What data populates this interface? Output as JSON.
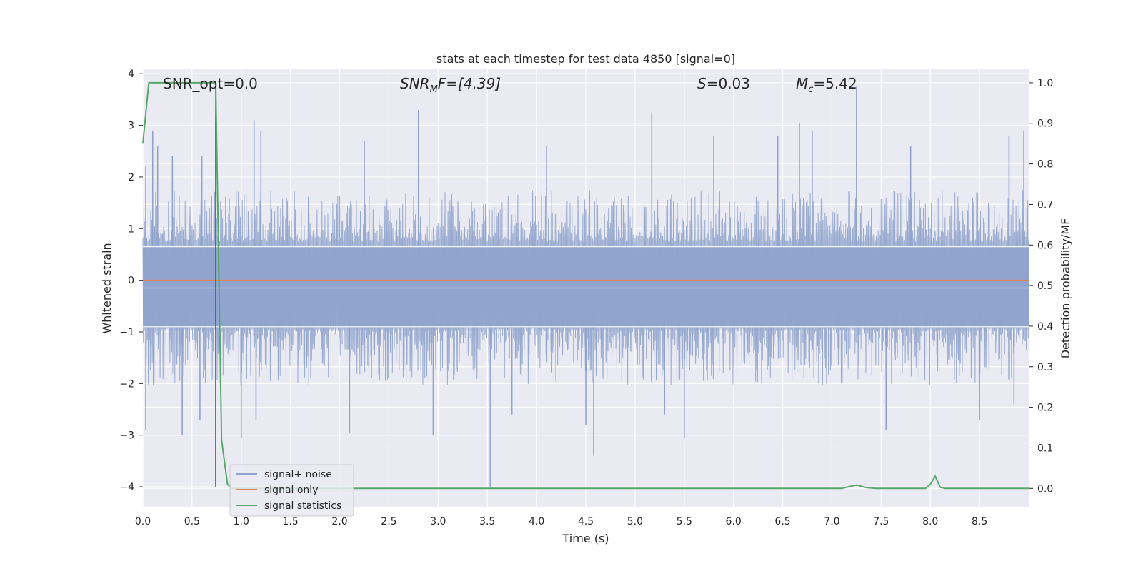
{
  "chart_data": {
    "type": "line",
    "title": "stats at each timestep for test data 4850 [signal=0]",
    "xlabel": "Time (s)",
    "ylabel": "Whitened strain",
    "y2label": "Detection probability/MF",
    "xlim": [
      0.0,
      9.0
    ],
    "ylim": [
      -4.4,
      4.1
    ],
    "y2lim": [
      -0.047,
      1.035
    ],
    "xticks": [
      "0.0",
      "0.5",
      "1.0",
      "1.5",
      "2.0",
      "2.5",
      "3.0",
      "3.5",
      "4.0",
      "4.5",
      "5.0",
      "5.5",
      "6.0",
      "6.5",
      "7.0",
      "7.5",
      "8.0",
      "8.5"
    ],
    "yticks": [
      "4",
      "3",
      "2",
      "1",
      "0",
      "−1",
      "−2",
      "−3",
      "−4"
    ],
    "y2ticks": [
      "1.0",
      "0.9",
      "0.8",
      "0.7",
      "0.6",
      "0.5",
      "0.4",
      "0.3",
      "0.2",
      "0.1",
      "0.0"
    ],
    "grid": true,
    "legend_position": "lower-left",
    "annotations": {
      "snr_opt": "SNR_opt=0.0",
      "snr_mf_sym": "SNR",
      "snr_mf_sub": "M",
      "snr_mf_rest": "F=[4.39]",
      "s_sym": "S",
      "s_rest": "=0.03",
      "mc_sym": "M",
      "mc_sub": "c",
      "mc_rest": "=5.42"
    },
    "vline_x": 0.74,
    "series": [
      {
        "name": "signal+ noise",
        "color": "#8fa3cc",
        "axis": "left",
        "envelope_upper_typical": 1.4,
        "envelope_lower_typical": -1.7,
        "peaks": [
          {
            "x": 0.1,
            "y": 2.9
          },
          {
            "x": 0.15,
            "y": 2.6
          },
          {
            "x": 0.3,
            "y": 2.4
          },
          {
            "x": 0.6,
            "y": 2.4
          },
          {
            "x": 1.13,
            "y": 3.1
          },
          {
            "x": 1.2,
            "y": 2.9
          },
          {
            "x": 2.8,
            "y": 3.3
          },
          {
            "x": 2.25,
            "y": 2.7
          },
          {
            "x": 4.1,
            "y": 2.6
          },
          {
            "x": 5.17,
            "y": 3.25
          },
          {
            "x": 5.8,
            "y": 2.8
          },
          {
            "x": 6.45,
            "y": 2.8
          },
          {
            "x": 6.67,
            "y": 3.05
          },
          {
            "x": 6.8,
            "y": 2.9
          },
          {
            "x": 7.25,
            "y": 3.75
          },
          {
            "x": 7.8,
            "y": 2.6
          },
          {
            "x": 8.8,
            "y": 2.8
          },
          {
            "x": 8.95,
            "y": 2.9
          },
          {
            "x": 0.03,
            "y": 2.2
          }
        ],
        "troughs": [
          {
            "x": 0.03,
            "y": -2.9
          },
          {
            "x": 0.4,
            "y": -3.0
          },
          {
            "x": 0.58,
            "y": -2.7
          },
          {
            "x": 1.0,
            "y": -3.05
          },
          {
            "x": 1.15,
            "y": -2.7
          },
          {
            "x": 2.1,
            "y": -2.95
          },
          {
            "x": 2.95,
            "y": -3.0
          },
          {
            "x": 3.53,
            "y": -4.0
          },
          {
            "x": 3.75,
            "y": -2.6
          },
          {
            "x": 4.58,
            "y": -3.4
          },
          {
            "x": 4.5,
            "y": -2.8
          },
          {
            "x": 5.5,
            "y": -3.05
          },
          {
            "x": 5.3,
            "y": -2.6
          },
          {
            "x": 7.55,
            "y": -2.9
          },
          {
            "x": 8.5,
            "y": -2.7
          },
          {
            "x": 8.85,
            "y": -2.4
          }
        ]
      },
      {
        "name": "signal only",
        "color": "#dd8452",
        "axis": "left",
        "x": [
          0.0,
          9.0
        ],
        "y": [
          0.0,
          0.0
        ]
      },
      {
        "name": "signal statistics",
        "color": "#55a868",
        "axis": "right",
        "x": [
          0.0,
          0.06,
          0.1,
          0.2,
          0.3,
          0.7,
          0.74,
          0.8,
          0.86,
          0.9,
          7.1,
          7.15,
          7.25,
          7.35,
          7.45,
          7.6,
          7.7,
          7.95,
          8.0,
          8.05,
          8.1,
          8.15,
          8.2,
          9.0
        ],
        "y": [
          0.85,
          1.0,
          1.0,
          1.0,
          1.0,
          1.0,
          1.0,
          0.12,
          0.01,
          0.0,
          0.0,
          0.003,
          0.008,
          0.002,
          0.0,
          0.0,
          0.0,
          0.0,
          0.01,
          0.03,
          0.003,
          0.0,
          0.0,
          0.0
        ]
      }
    ]
  }
}
